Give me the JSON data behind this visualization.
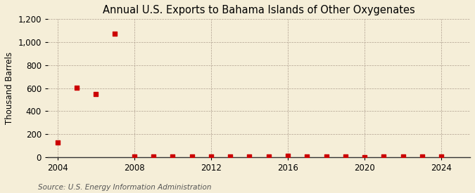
{
  "title": "Annual U.S. Exports to Bahama Islands of Other Oxygenates",
  "ylabel": "Thousand Barrels",
  "source": "Source: U.S. Energy Information Administration",
  "background_color": "#f5eed8",
  "years": [
    2004,
    2005,
    2006,
    2007,
    2008,
    2009,
    2010,
    2011,
    2012,
    2013,
    2014,
    2015,
    2016,
    2017,
    2018,
    2019,
    2020,
    2021,
    2022,
    2023,
    2024
  ],
  "values": [
    126,
    607,
    549,
    1072,
    5,
    8,
    4,
    6,
    8,
    5,
    5,
    7,
    14,
    5,
    6,
    5,
    3,
    4,
    6,
    5,
    4
  ],
  "marker_color": "#cc0000",
  "marker_size": 16,
  "xlim": [
    2003.5,
    2025.5
  ],
  "ylim": [
    0,
    1200
  ],
  "yticks": [
    0,
    200,
    400,
    600,
    800,
    1000,
    1200
  ],
  "xticks": [
    2004,
    2008,
    2012,
    2016,
    2020,
    2024
  ],
  "title_fontsize": 10.5,
  "axis_fontsize": 8.5,
  "source_fontsize": 7.5
}
